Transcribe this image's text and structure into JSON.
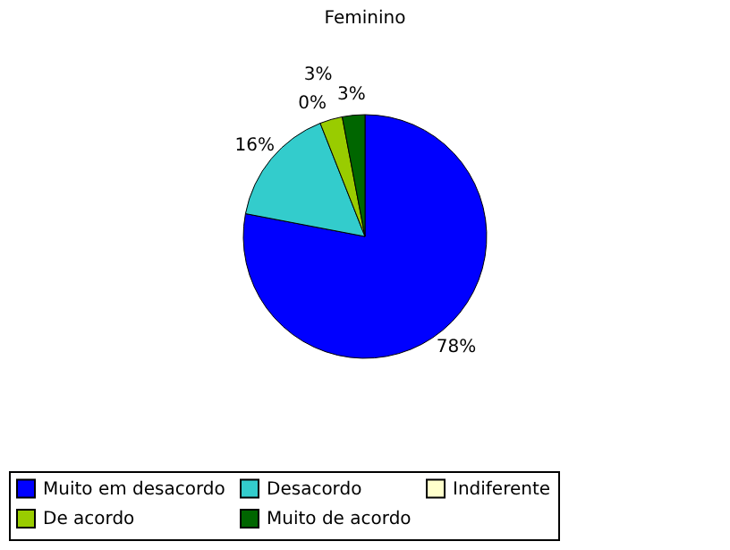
{
  "chart_data": {
    "type": "pie",
    "title": "Feminino",
    "categories": [
      "Muito em desacordo",
      "Desacordo",
      "Indiferente",
      "De acordo",
      "Muito de acordo"
    ],
    "values": [
      78,
      16,
      0,
      3,
      3
    ],
    "colors": [
      "#0000ff",
      "#33cccc",
      "#ffffcc",
      "#99cc00",
      "#006600"
    ],
    "value_labels": [
      "78%",
      "16%",
      "0%",
      "3%",
      "3%"
    ],
    "legend": "bottom"
  }
}
